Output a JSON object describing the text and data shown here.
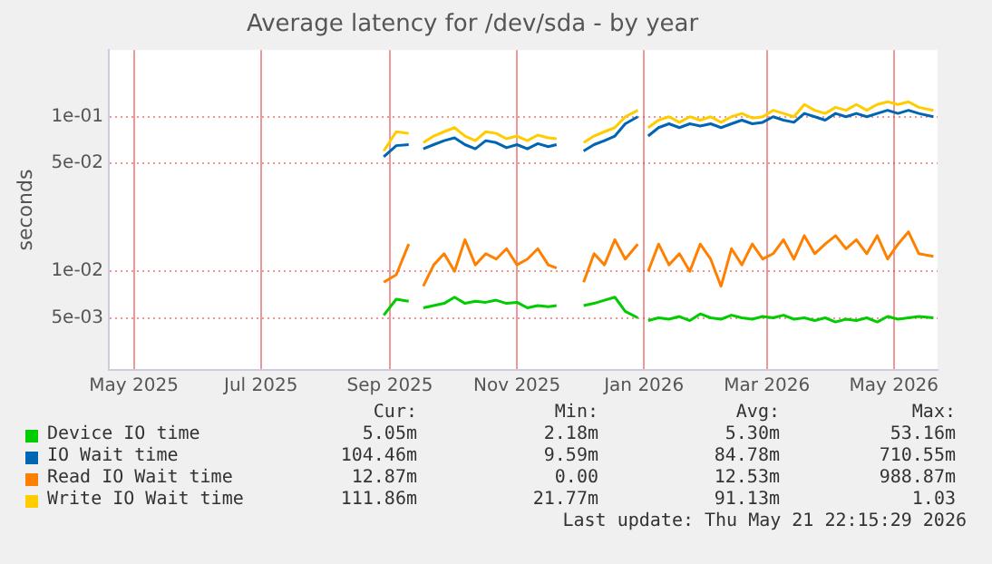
{
  "chart_data": {
    "type": "line",
    "title": "Average latency for /dev/sda - by year",
    "ylabel": "seconds",
    "log": "y",
    "grid": true,
    "legend": "bottom",
    "marker": "none",
    "line_style": "solid",
    "xlim": [
      "2025-04-19",
      "2026-05-22"
    ],
    "xticks": [
      {
        "value": "2025-05-01",
        "label": "May 2025"
      },
      {
        "value": "2025-07-01",
        "label": "Jul 2025"
      },
      {
        "value": "2025-09-01",
        "label": "Sep 2025"
      },
      {
        "value": "2025-11-01",
        "label": "Nov 2025"
      },
      {
        "value": "2026-01-01",
        "label": "Jan 2026"
      },
      {
        "value": "2026-03-01",
        "label": "Mar 2026"
      },
      {
        "value": "2026-05-01",
        "label": "May 2026"
      }
    ],
    "ylim": [
      0.0023,
      0.27
    ],
    "yticks": [
      {
        "value": 0.005,
        "label": "5e-03"
      },
      {
        "value": 0.01,
        "label": "1e-02"
      },
      {
        "value": 0.05,
        "label": "5e-02"
      },
      {
        "value": 0.1,
        "label": "1e-01"
      }
    ],
    "x": [
      "2025-08-29",
      "2025-09-04",
      "2025-09-10",
      "2025-09-13",
      "2025-09-17",
      "2025-09-22",
      "2025-09-27",
      "2025-10-02",
      "2025-10-07",
      "2025-10-12",
      "2025-10-17",
      "2025-10-22",
      "2025-10-27",
      "2025-11-01",
      "2025-11-06",
      "2025-11-11",
      "2025-11-16",
      "2025-11-20",
      "2025-11-27",
      "2025-12-03",
      "2025-12-08",
      "2025-12-13",
      "2025-12-18",
      "2025-12-23",
      "2025-12-29",
      "2025-12-31",
      "2026-01-03",
      "2026-01-08",
      "2026-01-13",
      "2026-01-18",
      "2026-01-23",
      "2026-01-28",
      "2026-02-02",
      "2026-02-07",
      "2026-02-12",
      "2026-02-17",
      "2026-02-22",
      "2026-02-27",
      "2026-03-04",
      "2026-03-09",
      "2026-03-14",
      "2026-03-19",
      "2026-03-24",
      "2026-03-29",
      "2026-04-03",
      "2026-04-08",
      "2026-04-13",
      "2026-04-18",
      "2026-04-23",
      "2026-04-28",
      "2026-05-03",
      "2026-05-08",
      "2026-05-13",
      "2026-05-20"
    ],
    "series": [
      {
        "name": "Device IO time",
        "color": "#00cc00",
        "values": [
          0.0052,
          0.0066,
          0.0064,
          null,
          0.0058,
          0.006,
          0.0062,
          0.0068,
          0.0062,
          0.0064,
          0.0063,
          0.0065,
          0.0062,
          0.0063,
          0.0058,
          0.006,
          0.0059,
          0.006,
          null,
          0.006,
          0.0062,
          0.0065,
          0.0068,
          0.0055,
          0.005,
          null,
          0.0048,
          0.005,
          0.0049,
          0.0051,
          0.0048,
          0.0053,
          0.005,
          0.0049,
          0.0052,
          0.005,
          0.0049,
          0.0051,
          0.005,
          0.0052,
          0.0049,
          0.005,
          0.0048,
          0.005,
          0.0047,
          0.0049,
          0.0048,
          0.005,
          0.0047,
          0.0051,
          0.0049,
          0.005,
          0.0051,
          0.005
        ]
      },
      {
        "name": "IO Wait time",
        "color": "#0066b3",
        "values": [
          0.055,
          0.065,
          0.066,
          null,
          0.062,
          0.066,
          0.07,
          0.073,
          0.066,
          0.062,
          0.07,
          0.068,
          0.063,
          0.066,
          0.062,
          0.067,
          0.064,
          0.066,
          null,
          0.06,
          0.066,
          0.07,
          0.075,
          0.09,
          0.1,
          null,
          0.075,
          0.085,
          0.09,
          0.085,
          0.09,
          0.087,
          0.09,
          0.085,
          0.09,
          0.095,
          0.09,
          0.092,
          0.1,
          0.095,
          0.092,
          0.105,
          0.1,
          0.095,
          0.105,
          0.1,
          0.105,
          0.1,
          0.105,
          0.11,
          0.105,
          0.11,
          0.105,
          0.1
        ]
      },
      {
        "name": "Read IO Wait time",
        "color": "#ff8000",
        "values": [
          0.0085,
          0.0095,
          0.015,
          null,
          0.008,
          0.011,
          0.013,
          0.01,
          0.016,
          0.011,
          0.013,
          0.012,
          0.014,
          0.011,
          0.012,
          0.014,
          0.011,
          0.0105,
          null,
          0.0085,
          0.013,
          0.011,
          0.016,
          0.012,
          0.015,
          null,
          0.01,
          0.015,
          0.011,
          0.013,
          0.01,
          0.015,
          0.012,
          0.008,
          0.014,
          0.011,
          0.015,
          0.012,
          0.013,
          0.016,
          0.012,
          0.017,
          0.013,
          0.015,
          0.017,
          0.014,
          0.016,
          0.013,
          0.017,
          0.012,
          0.015,
          0.018,
          0.013,
          0.0125
        ]
      },
      {
        "name": "Write IO Wait time",
        "color": "#ffcc00",
        "values": [
          0.06,
          0.08,
          0.078,
          null,
          0.068,
          0.075,
          0.08,
          0.085,
          0.075,
          0.07,
          0.08,
          0.078,
          0.072,
          0.075,
          0.07,
          0.076,
          0.073,
          0.072,
          null,
          0.068,
          0.075,
          0.08,
          0.085,
          0.1,
          0.11,
          null,
          0.085,
          0.095,
          0.1,
          0.092,
          0.1,
          0.095,
          0.1,
          0.092,
          0.1,
          0.105,
          0.098,
          0.1,
          0.11,
          0.105,
          0.1,
          0.12,
          0.11,
          0.105,
          0.115,
          0.11,
          0.12,
          0.11,
          0.12,
          0.125,
          0.12,
          0.125,
          0.115,
          0.11
        ]
      }
    ],
    "annotations": [
      "Cur:",
      "Min:",
      "Avg:",
      "Max:",
      "5.05m",
      "2.18m",
      "5.30m",
      "53.16m",
      "104.46m",
      "9.59m",
      "84.78m",
      "710.55m",
      "12.87m",
      "0.00",
      "12.53m",
      "988.87m",
      "111.86m",
      "21.77m",
      "91.13m",
      "1.03",
      "Last update: Thu May 21 22:15:29 2026"
    ]
  }
}
